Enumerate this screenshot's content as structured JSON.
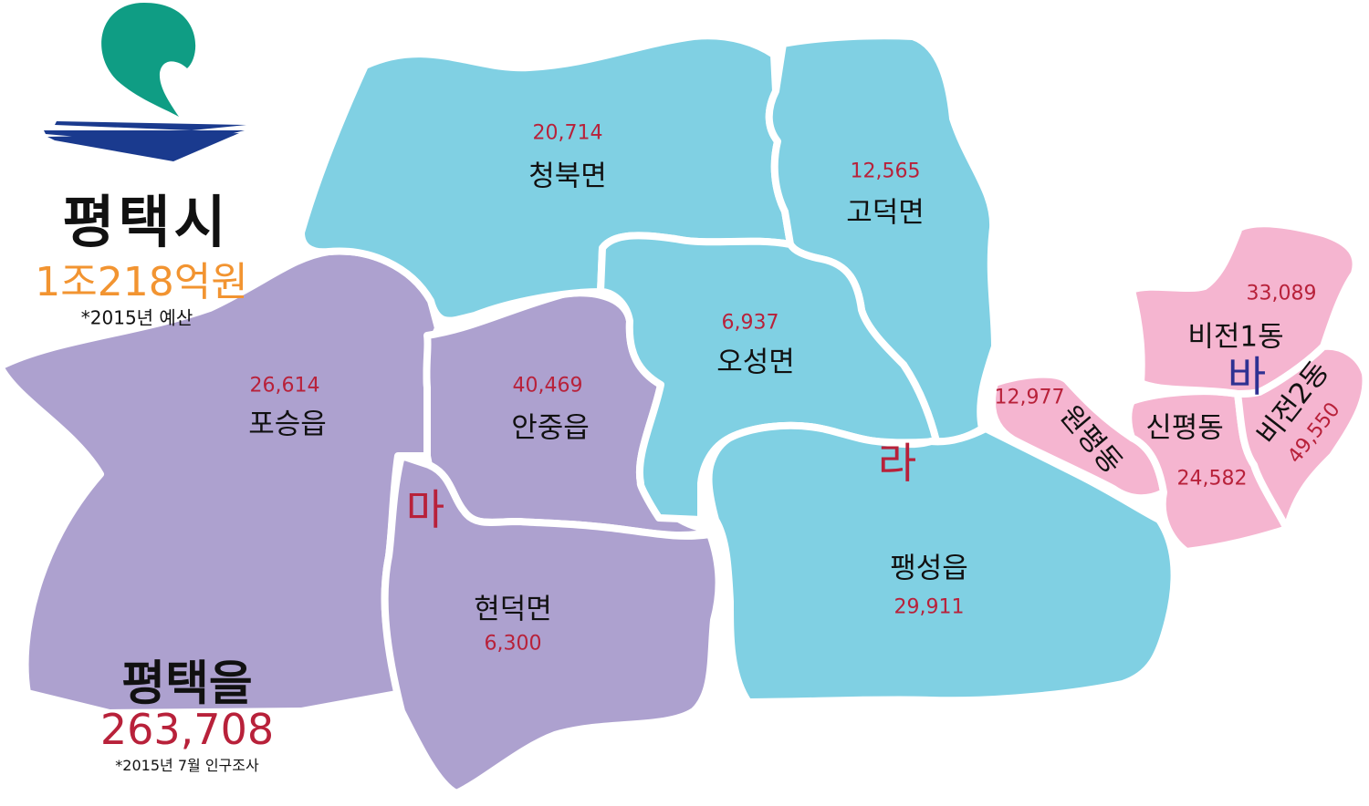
{
  "city": {
    "name": "평택시",
    "budget": "1조218억원",
    "budget_note": "*2015년 예산"
  },
  "district": {
    "name": "평택을",
    "population": "263,708",
    "note": "*2015년 7월 인구조사"
  },
  "colors": {
    "zone_ma": "#ada1cf",
    "zone_ra": "#80d0e3",
    "zone_ba": "#f5b5d0",
    "population_text": "#b8213a",
    "ba_label": "#2e3192",
    "budget_text": "#f29431",
    "logo_green": "#0f9d84",
    "logo_blue": "#1a3a8e"
  },
  "zones": {
    "ma": "마",
    "ra": "라",
    "ba": "바"
  },
  "regions": [
    {
      "id": "cheongbuk",
      "name": "청북면",
      "population": "20,714",
      "zone": "라"
    },
    {
      "id": "godeok",
      "name": "고덕면",
      "population": "12,565",
      "zone": "라"
    },
    {
      "id": "oseong",
      "name": "오성면",
      "population": "6,937",
      "zone": "라"
    },
    {
      "id": "paengseong",
      "name": "팽성읍",
      "population": "29,911",
      "zone": "라"
    },
    {
      "id": "poseung",
      "name": "포승읍",
      "population": "26,614",
      "zone": "마"
    },
    {
      "id": "anjung",
      "name": "안중읍",
      "population": "40,469",
      "zone": "마"
    },
    {
      "id": "hyeondeok",
      "name": "현덕면",
      "population": "6,300",
      "zone": "마"
    },
    {
      "id": "bijeon1",
      "name": "비전1동",
      "population": "33,089",
      "zone": "바"
    },
    {
      "id": "bijeon2",
      "name": "비전2동",
      "population": "49,550",
      "zone": "바"
    },
    {
      "id": "wonpyeong",
      "name": "원평동",
      "population": "12,977",
      "zone": "바"
    },
    {
      "id": "sinpyeong",
      "name": "신평동",
      "population": "24,582",
      "zone": "바"
    }
  ]
}
